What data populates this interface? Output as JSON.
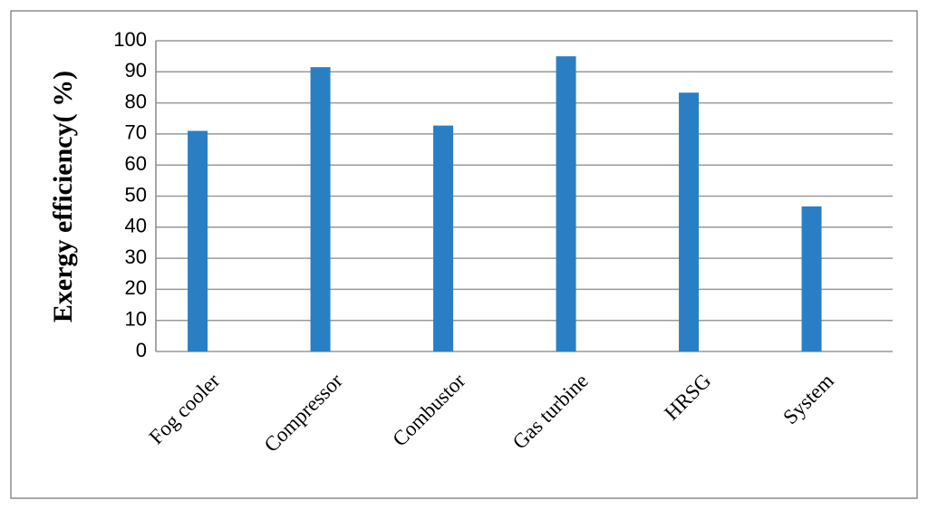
{
  "chart_data": {
    "type": "bar",
    "ylabel": "Exergy efficiency( %)",
    "categories": [
      "Fog cooler",
      "Compressor",
      "Combustor",
      "Gas turbine",
      "HRSG",
      "System"
    ],
    "values": [
      71,
      91.5,
      72.7,
      95,
      83.3,
      46.7
    ],
    "color": "#2a7fc4",
    "ylim": [
      0,
      100
    ],
    "yticks": [
      0,
      10,
      20,
      30,
      40,
      50,
      60,
      70,
      80,
      90,
      100
    ],
    "grid": true
  }
}
